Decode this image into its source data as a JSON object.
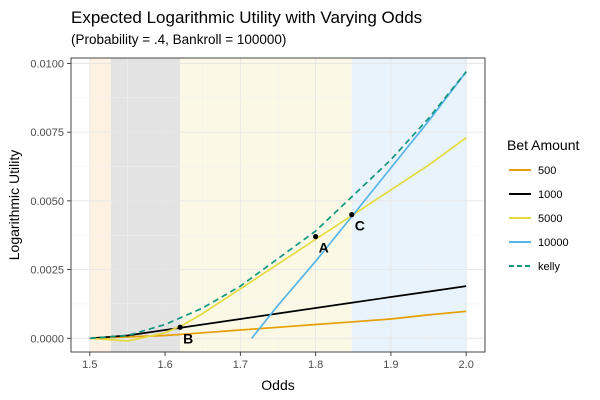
{
  "chart_data": {
    "type": "line",
    "title": "Expected Logarithmic Utility with Varying Odds",
    "subtitle": "(Probability = .4, Bankroll = 100000)",
    "xlabel": "Odds",
    "ylabel": "Logarithmic Utility",
    "xlim": [
      1.475,
      2.025
    ],
    "ylim": [
      -0.0005,
      0.0102
    ],
    "x_ticks": [
      1.5,
      1.6,
      1.7,
      1.8,
      1.9,
      2.0
    ],
    "x_tick_labels": [
      "1.5",
      "1.6",
      "1.7",
      "1.8",
      "1.9",
      "2.0"
    ],
    "y_ticks": [
      0.0,
      0.0025,
      0.005,
      0.0075,
      0.01
    ],
    "y_tick_labels": [
      "0.0000",
      "0.0025",
      "0.0050",
      "0.0075",
      "0.0100"
    ],
    "grid": true,
    "legend_position": "right",
    "legend_title": "Bet Amount",
    "shaded_regions": [
      {
        "x": [
          1.5,
          1.528
        ],
        "color": "#fdf1e1"
      },
      {
        "x": [
          1.528,
          1.62
        ],
        "color": "#e3e3e3"
      },
      {
        "x": [
          1.62,
          1.848
        ],
        "color": "#fbf9e6"
      },
      {
        "x": [
          1.848,
          2.0
        ],
        "color": "#e9f3fb"
      }
    ],
    "series": [
      {
        "name": "500",
        "color": "#E69F00",
        "dashed": false,
        "x": [
          1.5,
          1.55,
          1.6,
          1.65,
          1.7,
          1.75,
          1.8,
          1.85,
          1.9,
          1.95,
          2.0
        ],
        "y": [
          0.0,
          5e-05,
          0.0001,
          0.0002,
          0.0003,
          0.0004,
          0.0005,
          0.0006,
          0.0007,
          0.00085,
          0.00098
        ]
      },
      {
        "name": "1000",
        "color": "#000000",
        "dashed": false,
        "x": [
          1.5,
          1.55,
          1.6,
          1.65,
          1.7,
          1.75,
          1.8,
          1.85,
          1.9,
          1.95,
          2.0
        ],
        "y": [
          0.0,
          0.0001,
          0.0003,
          0.0005,
          0.0007,
          0.0009,
          0.0011,
          0.0013,
          0.0015,
          0.0017,
          0.0019
        ]
      },
      {
        "name": "5000",
        "color": "#E5DB3E",
        "dashed": false,
        "x": [
          1.5,
          1.55,
          1.6,
          1.625,
          1.65,
          1.7,
          1.75,
          1.8,
          1.85,
          1.9,
          1.95,
          1.99,
          2.0
        ],
        "y": [
          0.0,
          -0.0001,
          0.0002,
          0.0005,
          0.0009,
          0.0018,
          0.0027,
          0.0036,
          0.0045,
          0.0054,
          0.0063,
          0.0071,
          0.0073
        ]
      },
      {
        "name": "10000",
        "color": "#56B4E9",
        "dashed": false,
        "x": [
          1.715,
          1.75,
          1.8,
          1.85,
          1.9,
          1.95,
          2.0
        ],
        "y": [
          0.0,
          0.0012,
          0.0028,
          0.0045,
          0.0062,
          0.0079,
          0.0097
        ]
      },
      {
        "name": "kelly",
        "color": "#11967F",
        "dashed": true,
        "x": [
          1.5,
          1.55,
          1.6,
          1.65,
          1.7,
          1.75,
          1.8,
          1.85,
          1.9,
          1.95,
          2.0
        ],
        "y": [
          0.0,
          0.0001,
          0.0005,
          0.0011,
          0.0019,
          0.0029,
          0.0039,
          0.0052,
          0.0065,
          0.008,
          0.0097
        ]
      }
    ],
    "annotations": [
      {
        "label": "A",
        "x": 1.8,
        "y": 0.0037
      },
      {
        "label": "B",
        "x": 1.62,
        "y": 0.0004
      },
      {
        "label": "C",
        "x": 1.848,
        "y": 0.0045
      }
    ]
  }
}
